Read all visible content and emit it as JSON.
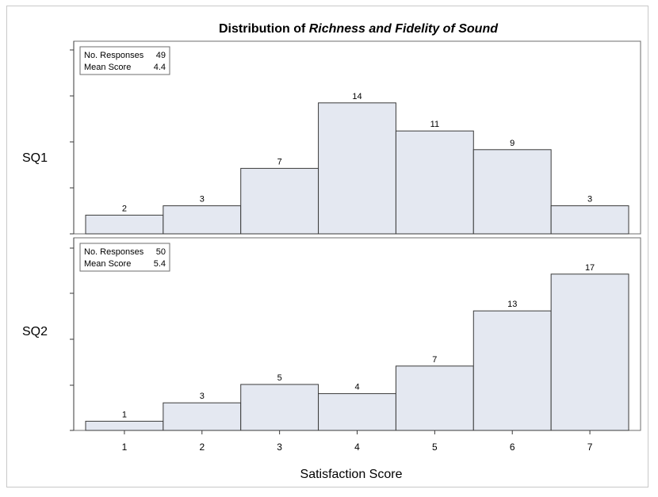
{
  "title": {
    "prefix": "Distribution of ",
    "emphasis": "Richness and Fidelity of Sound"
  },
  "xlabel": "Satisfaction Score",
  "chart_data": {
    "type": "bar",
    "title": "Distribution of Richness and Fidelity of Sound",
    "xlabel": "Satisfaction Score",
    "ylabel": "",
    "categories": [
      "1",
      "2",
      "3",
      "4",
      "5",
      "6",
      "7"
    ],
    "grid": false,
    "ylim": [
      0,
      17
    ],
    "bar_color": "#e4e8f1",
    "panels": [
      {
        "row_label": "SQ1",
        "values": [
          2,
          3,
          7,
          14,
          11,
          9,
          3
        ],
        "stats": [
          {
            "label": "No. Responses",
            "value": "49"
          },
          {
            "label": "Mean Score",
            "value": "4.4"
          }
        ]
      },
      {
        "row_label": "SQ2",
        "values": [
          1,
          3,
          5,
          4,
          7,
          13,
          17
        ],
        "stats": [
          {
            "label": "No. Responses",
            "value": "50"
          },
          {
            "label": "Mean Score",
            "value": "5.4"
          }
        ]
      }
    ]
  }
}
